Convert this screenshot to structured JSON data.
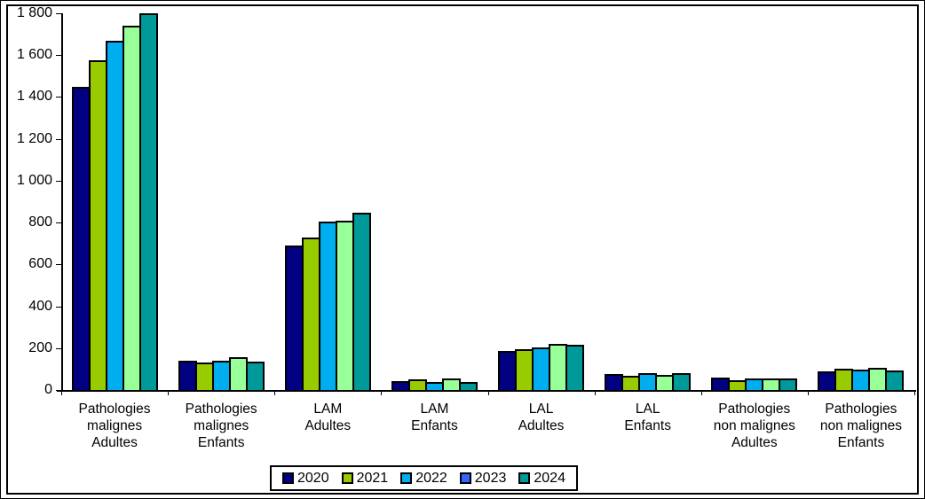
{
  "chart_data": {
    "type": "bar",
    "title": "",
    "xlabel": "",
    "ylabel": "",
    "ylim": [
      0,
      1800
    ],
    "grid": false,
    "legend_position": "bottom",
    "y_ticks": [
      {
        "value": 0,
        "label": "0"
      },
      {
        "value": 200,
        "label": "200"
      },
      {
        "value": 400,
        "label": "400"
      },
      {
        "value": 600,
        "label": "600"
      },
      {
        "value": 800,
        "label": "800"
      },
      {
        "value": 1000,
        "label": "1 000"
      },
      {
        "value": 1200,
        "label": "1 200"
      },
      {
        "value": 1400,
        "label": "1 400"
      },
      {
        "value": 1600,
        "label": "1 600"
      },
      {
        "value": 1800,
        "label": "1 800"
      }
    ],
    "categories": [
      {
        "lines": [
          "Pathologies",
          "malignes",
          "Adultes"
        ]
      },
      {
        "lines": [
          "Pathologies",
          "malignes",
          "Enfants"
        ]
      },
      {
        "lines": [
          "LAM",
          "Adultes"
        ]
      },
      {
        "lines": [
          "LAM",
          "Enfants"
        ]
      },
      {
        "lines": [
          "LAL",
          "Adultes"
        ]
      },
      {
        "lines": [
          "LAL",
          "Enfants"
        ]
      },
      {
        "lines": [
          "Pathologies",
          "non malignes",
          "Adultes"
        ]
      },
      {
        "lines": [
          "Pathologies",
          "non malignes",
          "Enfants"
        ]
      }
    ],
    "series": [
      {
        "name": "2020",
        "bar_color": "#000080",
        "legend_color": "#000080",
        "values": [
          1450,
          140,
          690,
          42,
          185,
          75,
          58,
          90
        ]
      },
      {
        "name": "2021",
        "bar_color": "#99CC00",
        "legend_color": "#99CC00",
        "values": [
          1575,
          130,
          730,
          50,
          195,
          68,
          48,
          100
        ]
      },
      {
        "name": "2022",
        "bar_color": "#00AEEF",
        "legend_color": "#00AEEF",
        "values": [
          1670,
          140,
          805,
          40,
          205,
          80,
          53,
          98
        ]
      },
      {
        "name": "2023",
        "bar_color": "#99FF99",
        "legend_color": "#3366FF",
        "values": [
          1740,
          155,
          810,
          57,
          220,
          70,
          53,
          105
        ]
      },
      {
        "name": "2024",
        "bar_color": "#009999",
        "legend_color": "#009999",
        "values": [
          1800,
          135,
          845,
          40,
          215,
          80,
          53,
          92
        ]
      }
    ]
  },
  "colors": {
    "background": "#FFFFFF",
    "axis": "#000000",
    "bar_outline": "#000000",
    "frame": "#000000"
  }
}
